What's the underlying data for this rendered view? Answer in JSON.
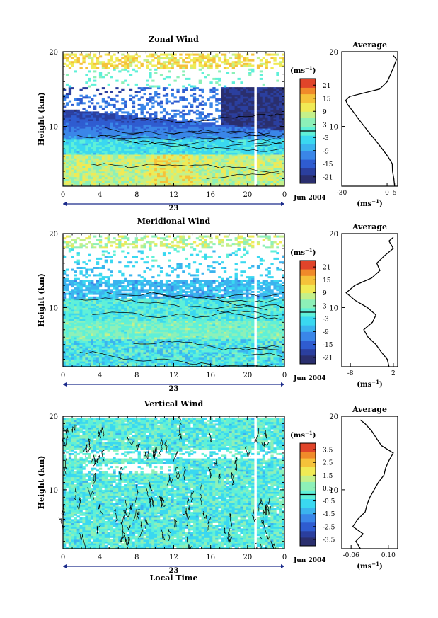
{
  "colors": {
    "scale": [
      "#2a2f6e",
      "#2b3f9e",
      "#2f5cd0",
      "#3a86e8",
      "#3bb3ee",
      "#3ad8f0",
      "#5ff0d8",
      "#8df0b8",
      "#c4f08a",
      "#f0ea55",
      "#f5c23a",
      "#f08a2a",
      "#e0442a"
    ]
  },
  "chart_data": [
    {
      "type": "heatmap",
      "title": "Zonal Wind",
      "xlabel": "",
      "ylabel": "Height (km)",
      "x_ticks": [
        "0",
        "4",
        "8",
        "12",
        "16",
        "20",
        "0"
      ],
      "day_label": "23",
      "date_label": "Jun 2004",
      "y_ticks": [
        "10",
        "20"
      ],
      "ylim": [
        2,
        20
      ],
      "xlim": [
        0,
        24
      ],
      "colorbar": {
        "unit": "(ms",
        "unit_sup": "−1",
        "unit_close": ")",
        "ticks": [
          "21",
          "15",
          "9",
          "3",
          "-3",
          "-9",
          "-15",
          "-21"
        ],
        "range": [
          -24,
          24
        ]
      },
      "average": {
        "title": "Average",
        "x_ticks": [
          "-30",
          "0",
          "5"
        ],
        "xlim": [
          -30,
          7
        ],
        "y_ticks": [
          "10",
          "20"
        ],
        "xlabel": "(ms",
        "xlabel_sup": "−1",
        "xlabel_close": ")",
        "height": [
          2,
          3,
          4,
          5,
          6,
          7,
          8,
          9,
          10,
          11,
          12,
          13,
          13.5,
          14,
          15,
          16,
          17,
          18,
          19,
          19.5
        ],
        "value": [
          5,
          4.5,
          4,
          3,
          0,
          -3,
          -7,
          -11,
          -15,
          -19,
          -23,
          -26,
          -27,
          -25,
          -5,
          0,
          2,
          4,
          6,
          4
        ]
      }
    },
    {
      "type": "heatmap",
      "title": "Meridional Wind",
      "xlabel": "",
      "ylabel": "Height (km)",
      "x_ticks": [
        "0",
        "4",
        "8",
        "12",
        "16",
        "20",
        "0"
      ],
      "day_label": "23",
      "date_label": "Jun 2004",
      "y_ticks": [
        "10",
        "20"
      ],
      "ylim": [
        2,
        20
      ],
      "xlim": [
        0,
        24
      ],
      "colorbar": {
        "unit": "(ms",
        "unit_sup": "−1",
        "unit_close": ")",
        "ticks": [
          "21",
          "15",
          "9",
          "3",
          "-3",
          "-9",
          "-15",
          "-21"
        ],
        "range": [
          -24,
          24
        ]
      },
      "average": {
        "title": "Average",
        "x_ticks": [
          "-8",
          "2"
        ],
        "xlim": [
          -10,
          3
        ],
        "y_ticks": [
          "10",
          "20"
        ],
        "xlabel": "(ms",
        "xlabel_sup": "−1",
        "xlabel_close": ")",
        "height": [
          2,
          3,
          4,
          5,
          6,
          7,
          8,
          9,
          10,
          11,
          12,
          13,
          14,
          15,
          16,
          17,
          18,
          19,
          19.5
        ],
        "value": [
          1,
          0.5,
          -1,
          -2,
          -4,
          -5,
          -3,
          -2,
          -4,
          -7,
          -9,
          -7,
          -3,
          -1,
          -2,
          0,
          2,
          1,
          2
        ]
      }
    },
    {
      "type": "heatmap",
      "title": "Vertical Wind",
      "xlabel": "Local Time",
      "ylabel": "Height (km)",
      "x_ticks": [
        "0",
        "4",
        "8",
        "12",
        "16",
        "20",
        "0"
      ],
      "day_label": "23",
      "date_label": "Jun 2004",
      "y_ticks": [
        "10",
        "20"
      ],
      "ylim": [
        2,
        20
      ],
      "xlim": [
        0,
        24
      ],
      "colorbar": {
        "unit": "(ms",
        "unit_sup": "−1",
        "unit_close": ")",
        "ticks": [
          "3.5",
          "2.5",
          "1.5",
          "0.5",
          "-0.5",
          "-1.5",
          "-2.5",
          "-3.5"
        ],
        "range": [
          -4,
          4
        ]
      },
      "average": {
        "title": "Average",
        "x_ticks": [
          "-0.06",
          "0.10"
        ],
        "xlim": [
          -0.1,
          0.14
        ],
        "y_ticks": [
          "10",
          "20"
        ],
        "xlabel": "(ms",
        "xlabel_sup": "−1",
        "xlabel_close": ")",
        "height": [
          2,
          3,
          4,
          5,
          6,
          7,
          8,
          9,
          10,
          11,
          12,
          13,
          14,
          15,
          16,
          17,
          18,
          19,
          19.5
        ],
        "value": [
          -0.02,
          -0.04,
          -0.01,
          -0.05,
          -0.03,
          0.0,
          0.01,
          0.02,
          0.04,
          0.06,
          0.08,
          0.09,
          0.1,
          0.12,
          0.07,
          0.05,
          0.03,
          0.0,
          -0.02
        ]
      }
    }
  ]
}
